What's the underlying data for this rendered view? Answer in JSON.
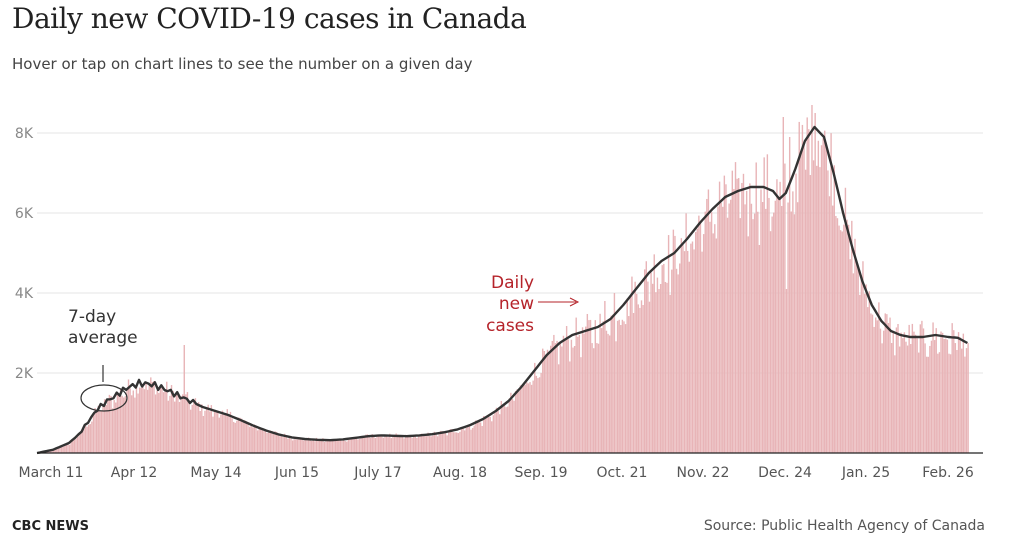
{
  "title": "Daily new COVID-19 cases in Canada",
  "subtitle": "Hover or tap on chart lines to see the number on a given day",
  "footer": {
    "brand": "CBC NEWS",
    "source": "Source: Public Health Agency of Canada"
  },
  "chart_data": {
    "type": "bar",
    "x_ticks": [
      "March 11",
      "Apr 12",
      "May 14",
      "Jun 15",
      "July 17",
      "Aug. 18",
      "Sep. 19",
      "Oct. 21",
      "Nov. 22",
      "Dec. 24",
      "Jan. 25",
      "Feb. 26"
    ],
    "y_ticks": [
      {
        "value": 2000,
        "label": "2K"
      },
      {
        "value": 4000,
        "label": "4K"
      },
      {
        "value": 6000,
        "label": "6K"
      },
      {
        "value": 8000,
        "label": "8K"
      }
    ],
    "ylim": [
      0,
      8800
    ],
    "grid": true,
    "series": [
      {
        "type": "bar",
        "color": "#e8b4b7"
      },
      {
        "type": "line",
        "color": "#333333"
      }
    ],
    "annotations": {
      "average": [
        "7-day",
        "average"
      ],
      "daily": [
        "Daily",
        "new",
        "cases"
      ]
    },
    "avg_points": [
      [
        0,
        0
      ],
      [
        10,
        80
      ],
      [
        20,
        250
      ],
      [
        26,
        450
      ],
      [
        32,
        780
      ],
      [
        38,
        1100
      ],
      [
        44,
        1300
      ],
      [
        50,
        1450
      ],
      [
        56,
        1620
      ],
      [
        64,
        1740
      ],
      [
        72,
        1720
      ],
      [
        80,
        1600
      ],
      [
        88,
        1450
      ],
      [
        96,
        1300
      ],
      [
        104,
        1150
      ],
      [
        112,
        1050
      ],
      [
        120,
        950
      ],
      [
        128,
        820
      ],
      [
        136,
        680
      ],
      [
        144,
        560
      ],
      [
        152,
        460
      ],
      [
        160,
        390
      ],
      [
        168,
        350
      ],
      [
        176,
        330
      ],
      [
        184,
        320
      ],
      [
        192,
        340
      ],
      [
        200,
        380
      ],
      [
        208,
        420
      ],
      [
        216,
        440
      ],
      [
        224,
        430
      ],
      [
        232,
        420
      ],
      [
        240,
        440
      ],
      [
        248,
        470
      ],
      [
        256,
        520
      ],
      [
        264,
        590
      ],
      [
        272,
        700
      ],
      [
        280,
        850
      ],
      [
        288,
        1050
      ],
      [
        296,
        1300
      ],
      [
        304,
        1650
      ],
      [
        312,
        2050
      ],
      [
        320,
        2450
      ],
      [
        328,
        2750
      ],
      [
        336,
        2950
      ],
      [
        344,
        3050
      ],
      [
        352,
        3150
      ],
      [
        360,
        3350
      ],
      [
        368,
        3700
      ],
      [
        376,
        4100
      ],
      [
        384,
        4500
      ],
      [
        392,
        4800
      ],
      [
        400,
        5000
      ],
      [
        408,
        5350
      ],
      [
        416,
        5750
      ],
      [
        424,
        6100
      ],
      [
        432,
        6400
      ],
      [
        440,
        6550
      ],
      [
        448,
        6650
      ],
      [
        456,
        6650
      ],
      [
        462,
        6550
      ],
      [
        466,
        6350
      ],
      [
        470,
        6500
      ],
      [
        476,
        7100
      ],
      [
        482,
        7800
      ],
      [
        488,
        8150
      ],
      [
        494,
        7900
      ],
      [
        500,
        7000
      ],
      [
        506,
        6000
      ],
      [
        512,
        5100
      ],
      [
        518,
        4300
      ],
      [
        524,
        3700
      ],
      [
        530,
        3300
      ],
      [
        536,
        3050
      ],
      [
        542,
        2950
      ],
      [
        548,
        2900
      ],
      [
        556,
        2900
      ],
      [
        564,
        2950
      ],
      [
        572,
        2900
      ],
      [
        578,
        2880
      ],
      [
        584,
        2750
      ]
    ]
  }
}
